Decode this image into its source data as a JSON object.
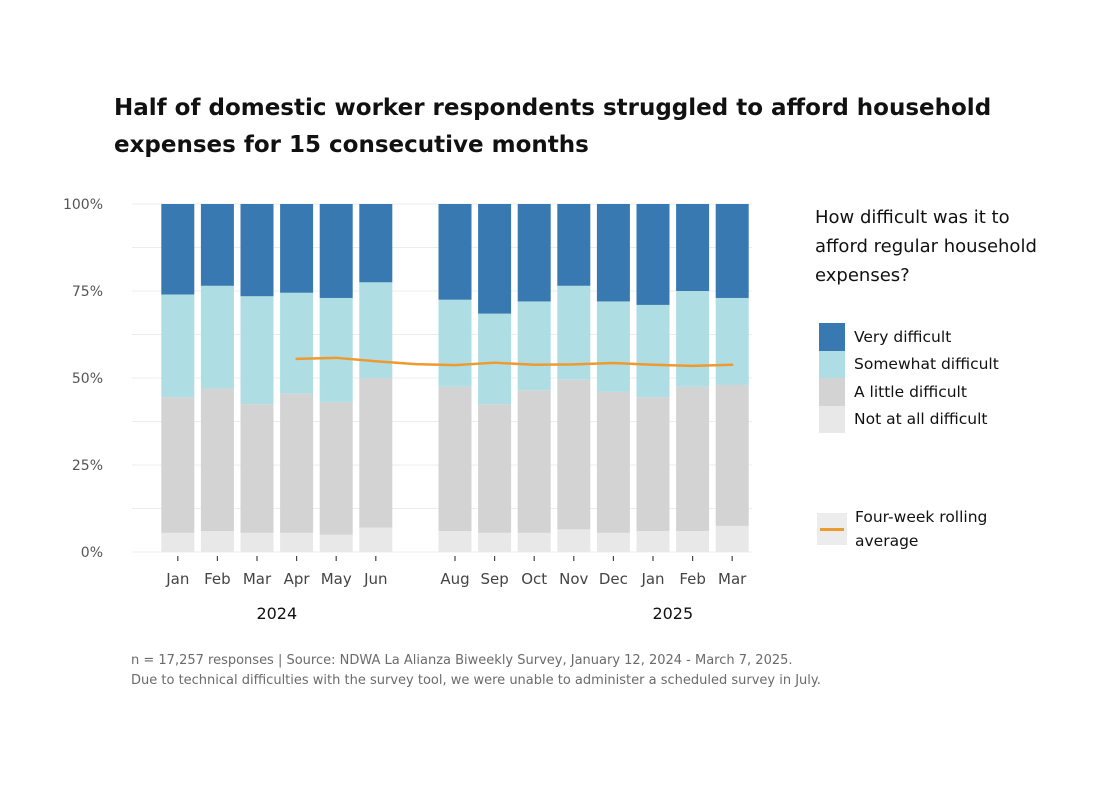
{
  "title": "Half of domestic worker respondents struggled to afford household expenses for 15 consecutive months",
  "legend_title": "How difficult was it to afford regular household expenses?",
  "legend_line_label": "Four-week rolling average",
  "footnote": {
    "line1": "n =  17,257 responses | Source: NDWA La Alianza Biweekly Survey, January 12, 2024 - March 7, 2025.",
    "line2": "Due to technical difficulties with the survey tool, we were unable to administer a scheduled survey in July."
  },
  "chart_data": {
    "type": "bar",
    "stacked": true,
    "categories": [
      "Jan",
      "Feb",
      "Mar",
      "Apr",
      "May",
      "Jun",
      "Aug",
      "Sep",
      "Oct",
      "Nov",
      "Dec",
      "Jan",
      "Feb",
      "Mar"
    ],
    "year_labels": [
      "2024",
      "2025"
    ],
    "yticks": [
      "0%",
      "25%",
      "50%",
      "75%",
      "100%"
    ],
    "ylim": [
      0,
      100
    ],
    "grid": true,
    "legend_position": "right",
    "series": [
      {
        "name": "Not at all difficult",
        "color": "#e8e8e8",
        "values": [
          5.5,
          6,
          5.5,
          5.5,
          5,
          7,
          6,
          5.5,
          5.5,
          6.5,
          5.5,
          6,
          6,
          7.5
        ]
      },
      {
        "name": "A little difficult",
        "color": "#d3d3d3",
        "values": [
          39,
          41,
          37,
          40,
          38,
          43,
          41.5,
          37,
          41,
          43,
          40.5,
          38.5,
          41.5,
          40.5
        ]
      },
      {
        "name": "Somewhat difficult",
        "color": "#aedde3",
        "values": [
          29.5,
          29.5,
          31,
          29,
          30,
          27.5,
          25,
          26,
          25.5,
          27,
          26,
          26.5,
          27.5,
          25
        ]
      },
      {
        "name": "Very difficult",
        "color": "#3779b0",
        "values": [
          26,
          23.5,
          26.5,
          25.5,
          27,
          22.5,
          27.5,
          31.5,
          28,
          23.5,
          28,
          29,
          25,
          27
        ]
      }
    ],
    "line": {
      "name": "Four-week rolling average",
      "color": "#ef9a2f",
      "points": [
        [
          3.5,
          55.5
        ],
        [
          4.5,
          55.8
        ],
        [
          5.5,
          54.8
        ],
        [
          6.5,
          54
        ],
        [
          7.5,
          53.7
        ],
        [
          8.5,
          54.4
        ],
        [
          9.5,
          53.8
        ],
        [
          10.5,
          53.9
        ],
        [
          11.5,
          54.3
        ],
        [
          12.5,
          53.8
        ],
        [
          13.5,
          53.5
        ],
        [
          14.5,
          53.8
        ]
      ]
    }
  }
}
